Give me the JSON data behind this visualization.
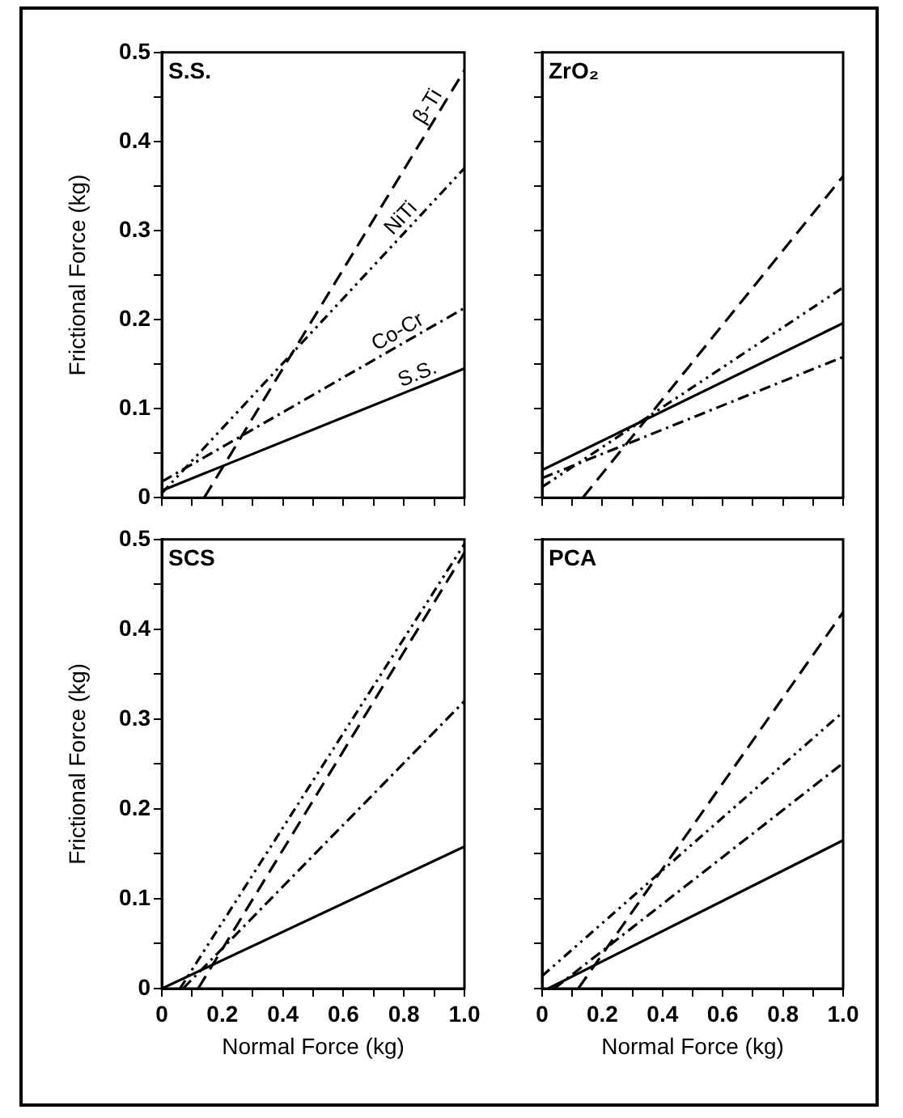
{
  "chart_data": [
    {
      "type": "line",
      "title": "S.S.",
      "ylabel": "Frictional Force (kg)",
      "xlim": [
        0,
        1
      ],
      "ylim": [
        0,
        0.5
      ],
      "tick_labels": "y",
      "legend": false,
      "grid": false,
      "marker": "none",
      "xticks": [
        0,
        {
          "value": 0.1,
          "label": null
        },
        0.2,
        {
          "value": 0.3,
          "label": null
        },
        0.4,
        {
          "value": 0.5,
          "label": null
        },
        0.6,
        {
          "value": 0.7,
          "label": null
        },
        0.8,
        {
          "value": 0.9,
          "label": null
        },
        1
      ],
      "yticks": [
        0,
        {
          "value": 0.05,
          "label": null
        },
        0.1,
        {
          "value": 0.15,
          "label": null
        },
        0.2,
        {
          "value": 0.25,
          "label": null
        },
        0.3,
        {
          "value": 0.35,
          "label": null
        },
        0.4,
        {
          "value": 0.45,
          "label": null
        },
        0.5
      ],
      "series": [
        {
          "name": "β-Ti",
          "color": "#000000",
          "line_style": "dashed",
          "x": [
            0.14,
            1
          ],
          "values": [
            0,
            0.48
          ]
        },
        {
          "name": "NiTi",
          "color": "#000000",
          "line_style": "dotted",
          "x": [
            0,
            1
          ],
          "values": [
            0.005,
            0.37
          ]
        },
        {
          "name": "Co-Cr",
          "color": "#000000",
          "line_style": "dashdot",
          "x": [
            0,
            1
          ],
          "values": [
            0.018,
            0.213
          ]
        },
        {
          "name": "S.S.",
          "color": "#000000",
          "line_style": "solid",
          "x": [
            0,
            1
          ],
          "values": [
            0.008,
            0.145
          ]
        }
      ]
    },
    {
      "type": "line",
      "title": "ZrO₂",
      "xlim": [
        0,
        1
      ],
      "ylim": [
        0,
        0.5
      ],
      "tick_labels": false,
      "legend": false,
      "grid": false,
      "marker": "none",
      "xticks": [
        0,
        {
          "value": 0.1,
          "label": null
        },
        0.2,
        {
          "value": 0.3,
          "label": null
        },
        0.4,
        {
          "value": 0.5,
          "label": null
        },
        0.6,
        {
          "value": 0.7,
          "label": null
        },
        0.8,
        {
          "value": 0.9,
          "label": null
        },
        1
      ],
      "yticks": [
        0,
        {
          "value": 0.05,
          "label": null
        },
        0.1,
        {
          "value": 0.15,
          "label": null
        },
        0.2,
        {
          "value": 0.25,
          "label": null
        },
        0.3,
        {
          "value": 0.35,
          "label": null
        },
        0.4,
        {
          "value": 0.45,
          "label": null
        },
        0.5
      ],
      "series": [
        {
          "color": "#000000",
          "line_style": "dashed",
          "x": [
            0.135,
            1
          ],
          "values": [
            0,
            0.361
          ]
        },
        {
          "color": "#000000",
          "line_style": "dotted",
          "x": [
            0,
            1
          ],
          "values": [
            0.012,
            0.236
          ]
        },
        {
          "color": "#000000",
          "line_style": "dashdot",
          "x": [
            0,
            1
          ],
          "values": [
            0.022,
            0.158
          ]
        },
        {
          "color": "#000000",
          "line_style": "solid",
          "x": [
            0,
            1
          ],
          "values": [
            0.031,
            0.196
          ]
        }
      ]
    },
    {
      "type": "line",
      "title": "SCS",
      "xlabel": "Normal Force (kg)",
      "ylabel": "Frictional Force (kg)",
      "xlim": [
        0,
        1
      ],
      "ylim": [
        0,
        0.5
      ],
      "legend": false,
      "grid": false,
      "marker": "none",
      "xticks": [
        0,
        {
          "value": 0.1,
          "label": null
        },
        0.2,
        {
          "value": 0.3,
          "label": null
        },
        0.4,
        {
          "value": 0.5,
          "label": null
        },
        0.6,
        {
          "value": 0.7,
          "label": null
        },
        0.8,
        {
          "value": 0.9,
          "label": null
        },
        {
          "value": 1,
          "label": "1.0"
        }
      ],
      "yticks": [
        0,
        {
          "value": 0.05,
          "label": null
        },
        0.1,
        {
          "value": 0.15,
          "label": null
        },
        0.2,
        {
          "value": 0.25,
          "label": null
        },
        0.3,
        {
          "value": 0.35,
          "label": null
        },
        0.4,
        {
          "value": 0.45,
          "label": null
        },
        0.5
      ],
      "series": [
        {
          "color": "#000000",
          "line_style": "dashed",
          "x": [
            0.12,
            1
          ],
          "values": [
            0,
            0.485
          ]
        },
        {
          "color": "#000000",
          "line_style": "dotted",
          "x": [
            0.06,
            1
          ],
          "values": [
            0,
            0.495
          ]
        },
        {
          "color": "#000000",
          "line_style": "dashdot",
          "x": [
            0.07,
            1
          ],
          "values": [
            0,
            0.32
          ]
        },
        {
          "color": "#000000",
          "line_style": "solid",
          "x": [
            0,
            1
          ],
          "values": [
            0,
            0.158
          ]
        }
      ]
    },
    {
      "type": "line",
      "title": "PCA",
      "xlabel": "Normal Force (kg)",
      "xlim": [
        0,
        1
      ],
      "ylim": [
        0,
        0.5
      ],
      "tick_labels": "x",
      "legend": false,
      "grid": false,
      "marker": "none",
      "xticks": [
        0,
        {
          "value": 0.1,
          "label": null
        },
        0.2,
        {
          "value": 0.3,
          "label": null
        },
        0.4,
        {
          "value": 0.5,
          "label": null
        },
        0.6,
        {
          "value": 0.7,
          "label": null
        },
        0.8,
        {
          "value": 0.9,
          "label": null
        },
        {
          "value": 1,
          "label": "1.0"
        }
      ],
      "yticks": [
        0,
        {
          "value": 0.05,
          "label": null
        },
        0.1,
        {
          "value": 0.15,
          "label": null
        },
        0.2,
        {
          "value": 0.25,
          "label": null
        },
        0.3,
        {
          "value": 0.35,
          "label": null
        },
        0.4,
        {
          "value": 0.45,
          "label": null
        },
        0.5
      ],
      "series": [
        {
          "color": "#000000",
          "line_style": "dashed",
          "x": [
            0.12,
            1
          ],
          "values": [
            0,
            0.419
          ]
        },
        {
          "color": "#000000",
          "line_style": "dotted",
          "x": [
            0,
            1
          ],
          "values": [
            0.014,
            0.308
          ]
        },
        {
          "color": "#000000",
          "line_style": "dashdot",
          "x": [
            0.04,
            1
          ],
          "values": [
            0,
            0.251
          ]
        },
        {
          "color": "#000000",
          "line_style": "solid",
          "x": [
            0.02,
            1
          ],
          "values": [
            0,
            0.165
          ]
        }
      ]
    }
  ]
}
